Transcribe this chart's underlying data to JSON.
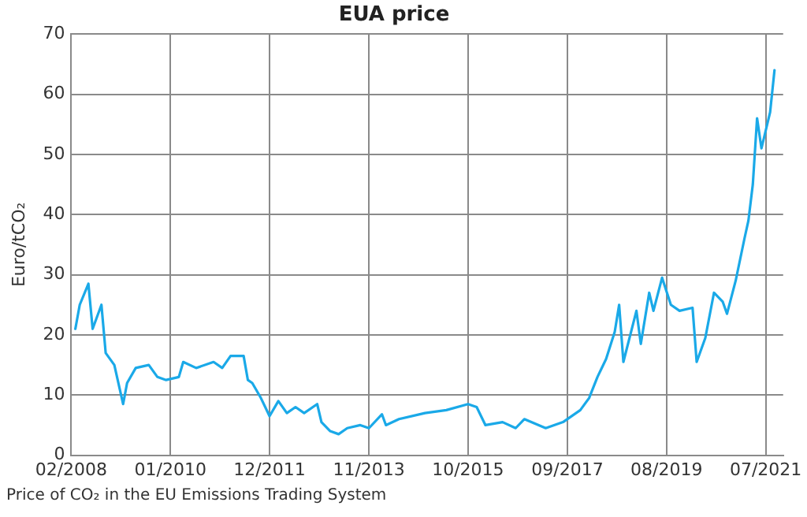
{
  "chart_data": {
    "type": "line",
    "title": "EUA price",
    "ylabel": "Euro/tCO₂",
    "annotations": [
      "Price of CO₂ in the EU Emissions Trading System"
    ],
    "x": [
      "2008-03",
      "2008-04",
      "2008-06",
      "2008-07",
      "2008-09",
      "2008-10",
      "2008-12",
      "2009-02",
      "2009-03",
      "2009-05",
      "2009-08",
      "2009-10",
      "2009-12",
      "2010-03",
      "2010-04",
      "2010-07",
      "2010-11",
      "2011-01",
      "2011-03",
      "2011-06",
      "2011-07",
      "2011-08",
      "2011-10",
      "2011-12",
      "2012-02",
      "2012-04",
      "2012-06",
      "2012-08",
      "2012-11",
      "2012-12",
      "2013-02",
      "2013-04",
      "2013-06",
      "2013-09",
      "2013-11",
      "2014-02",
      "2014-03",
      "2014-06",
      "2014-12",
      "2015-05",
      "2015-10",
      "2015-12",
      "2016-02",
      "2016-06",
      "2016-09",
      "2016-11",
      "2017-04",
      "2017-08",
      "2017-12",
      "2018-02",
      "2018-04",
      "2018-06",
      "2018-08",
      "2018-09",
      "2018-10",
      "2019-01",
      "2019-02",
      "2019-04",
      "2019-05",
      "2019-07",
      "2019-09",
      "2019-11",
      "2020-02",
      "2020-03",
      "2020-05",
      "2020-07",
      "2020-09",
      "2020-10",
      "2020-12",
      "2021-02",
      "2021-03",
      "2021-04",
      "2021-05",
      "2021-06",
      "2021-08",
      "2021-09"
    ],
    "series": [
      {
        "color": "#1aa9e8",
        "values": [
          21,
          25,
          28.5,
          21,
          25,
          17,
          15,
          8.5,
          12,
          14.5,
          15,
          13,
          12.5,
          13,
          15.5,
          14.5,
          15.5,
          14.5,
          16.5,
          16.5,
          12.5,
          12,
          9.5,
          6.5,
          9,
          7,
          8,
          7,
          8.5,
          5.5,
          4,
          3.5,
          4.5,
          5,
          4.5,
          6.8,
          5,
          6,
          7,
          7.5,
          8.5,
          8,
          5,
          5.5,
          4.5,
          6,
          4.5,
          5.5,
          7.5,
          9.5,
          13,
          16,
          20.5,
          25,
          15.5,
          24,
          18.5,
          27,
          24,
          29.5,
          25,
          24,
          24.5,
          15.5,
          19.5,
          27,
          25.5,
          23.5,
          29,
          36,
          39,
          45,
          56,
          51,
          57,
          64
        ]
      }
    ],
    "xlim": [
      "2008-02",
      "2021-11"
    ],
    "xticks": [
      {
        "value": "2008-02",
        "label": "02/2008"
      },
      {
        "value": "2010-01",
        "label": "01/2010"
      },
      {
        "value": "2011-12",
        "label": "12/2011"
      },
      {
        "value": "2013-11",
        "label": "11/2013"
      },
      {
        "value": "2015-10",
        "label": "10/2015"
      },
      {
        "value": "2017-09",
        "label": "09/2017"
      },
      {
        "value": "2019-08",
        "label": "08/2019"
      },
      {
        "value": "2021-07",
        "label": "07/2021"
      }
    ],
    "ylim": [
      0,
      70
    ],
    "yticks": [
      0,
      10,
      20,
      30,
      40,
      50,
      60,
      70
    ],
    "grid": true
  }
}
